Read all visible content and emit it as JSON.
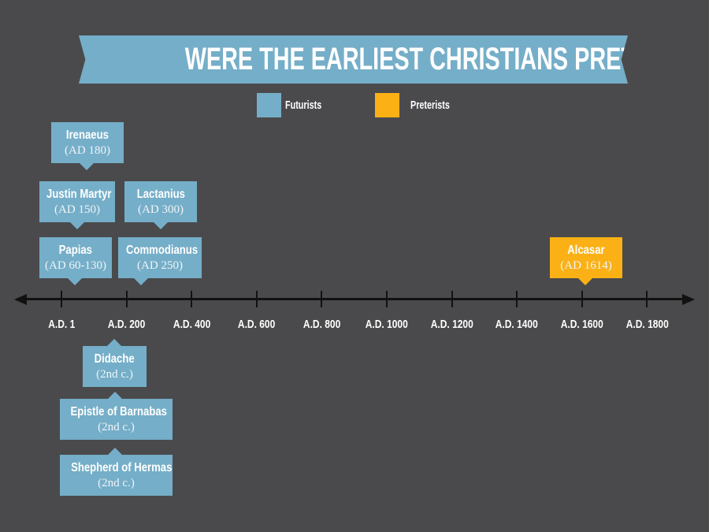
{
  "title": "WERE THE EARLIEST CHRISTIANS PRETERISTS?",
  "colors": {
    "background": "#4a4a4c",
    "futurists": "#75aec8",
    "preterists": "#fbb116",
    "axis": "#111111"
  },
  "legend": [
    {
      "label": "Futurists",
      "color": "#75aec8"
    },
    {
      "label": "Preterists",
      "color": "#fbb116"
    }
  ],
  "axis": {
    "ticks": [
      "A.D. 1",
      "A.D. 200",
      "A.D. 400",
      "A.D. 600",
      "A.D. 800",
      "A.D. 1000",
      "A.D. 1200",
      "A.D. 1400",
      "A.D. 1600",
      "A.D. 1800"
    ]
  },
  "entries": {
    "irenaeus": {
      "name": "Irenaeus",
      "date": "(AD 180)",
      "group": "Futurists"
    },
    "justin": {
      "name": "Justin Martyr",
      "date": "(AD 150)",
      "group": "Futurists"
    },
    "lactanius": {
      "name": "Lactanius",
      "date": "(AD 300)",
      "group": "Futurists"
    },
    "papias": {
      "name": "Papias",
      "date": "(AD 60-130)",
      "group": "Futurists"
    },
    "commodianus": {
      "name": "Commodianus",
      "date": "(AD 250)",
      "group": "Futurists"
    },
    "alcasar": {
      "name": "Alcasar",
      "date": "(AD 1614)",
      "group": "Preterists"
    },
    "didache": {
      "name": "Didache",
      "date": "(2nd c.)",
      "group": "Futurists"
    },
    "barnabas": {
      "name": "Epistle of Barnabas",
      "date": "(2nd c.)",
      "group": "Futurists"
    },
    "hermas": {
      "name": "Shepherd of Hermas",
      "date": "(2nd c.)",
      "group": "Futurists"
    }
  }
}
